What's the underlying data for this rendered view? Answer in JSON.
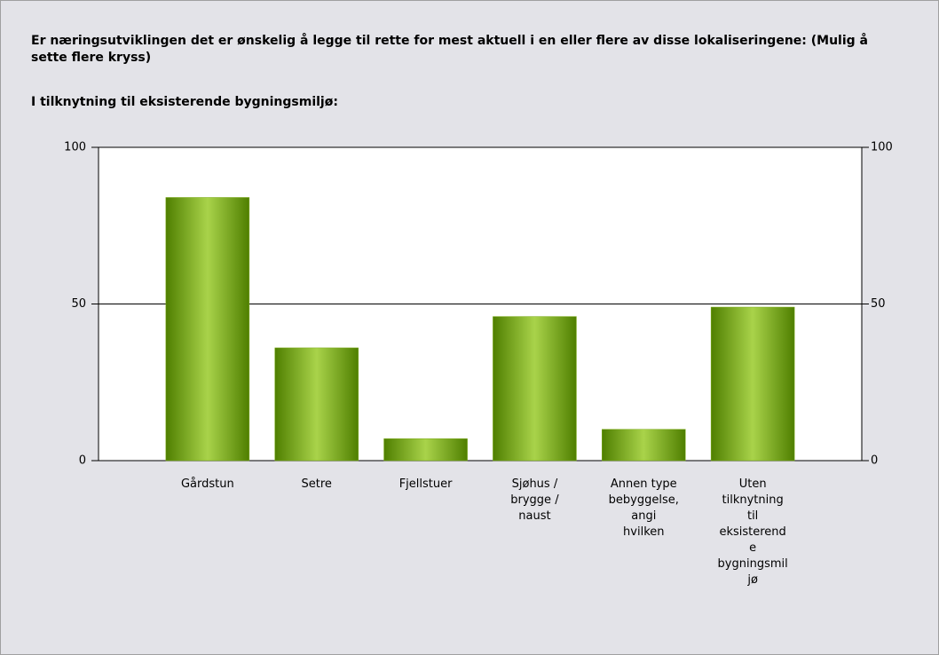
{
  "chart_data": {
    "type": "bar",
    "title": "Er næringsutviklingen det er ønskelig å legge til rette for mest aktuell i en eller flere av disse lokaliseringene: (Mulig å sette flere kryss)",
    "subtitle": "I tilknytning til eksisterende bygningsmiljø:",
    "categories": [
      "Gårdstun",
      "Setre",
      "Fjellstuer",
      "Sjøhus / brygge / naust",
      "Annen type bebyggelse, angi hvilken",
      "Uten tilknytning til eksisterende bygningsmiljø"
    ],
    "values": [
      84,
      36,
      7,
      46,
      10,
      49
    ],
    "color": "#7aaa16",
    "ylim": [
      0,
      100
    ],
    "yticks": [
      0,
      50,
      100
    ],
    "y2lim": [
      0,
      100
    ],
    "y2ticks": [
      0,
      50,
      100
    ],
    "grid": true
  }
}
